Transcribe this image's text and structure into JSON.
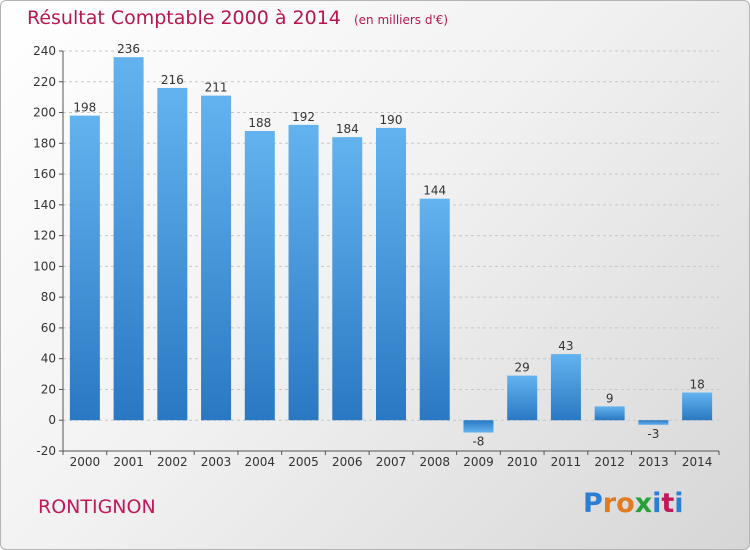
{
  "title": "Résultat Comptable 2000 à 2014",
  "unit": "(en milliers d'€)",
  "commune": "RONTIGNON",
  "logo": {
    "letters": [
      "P",
      "r",
      "o",
      "x",
      "i",
      "t",
      "i"
    ],
    "colors": [
      "#2a7fd4",
      "#e07b20",
      "#e07b20",
      "#2aa03a",
      "#2a7fd4",
      "#c0195a",
      "#2a7fd4"
    ]
  },
  "chart_data": {
    "type": "bar",
    "title": "Résultat Comptable 2000 à 2014",
    "subtitle": "(en milliers d'€)",
    "xlabel": "",
    "ylabel": "",
    "categories": [
      "2000",
      "2001",
      "2002",
      "2003",
      "2004",
      "2005",
      "2006",
      "2007",
      "2008",
      "2009",
      "2010",
      "2011",
      "2012",
      "2013",
      "2014"
    ],
    "values": [
      198,
      236,
      216,
      211,
      188,
      192,
      184,
      190,
      144,
      -8,
      29,
      43,
      9,
      -3,
      18
    ],
    "ylim": [
      -20,
      240
    ],
    "yticks": [
      -20,
      0,
      20,
      40,
      60,
      80,
      100,
      120,
      140,
      160,
      180,
      200,
      220,
      240
    ],
    "grid": true,
    "bar_color": "#4a9fe0"
  }
}
